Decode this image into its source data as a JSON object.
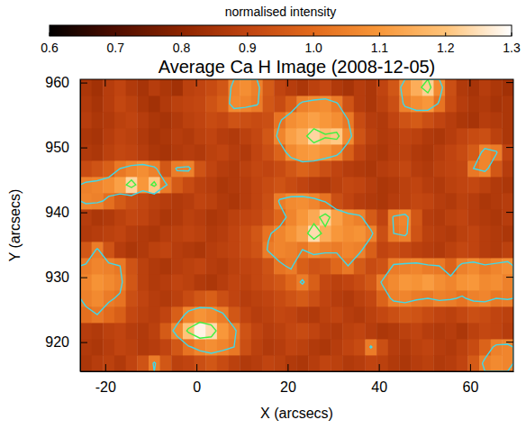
{
  "chart_data": {
    "type": "heatmap",
    "title": "Average Ca H Image (2008-12-05)",
    "x_label": "X (arcsecs)",
    "y_label": "Y (arcsecs)",
    "xlim": [
      -25.5,
      69.5
    ],
    "ylim": [
      915.5,
      960.5
    ],
    "xticks": [
      -20,
      0,
      20,
      40,
      60
    ],
    "yticks": [
      920,
      930,
      940,
      950,
      960
    ],
    "colorbar": {
      "label": "normalised intensity",
      "range": [
        0.6,
        1.3
      ],
      "ticks": [
        0.6,
        0.7,
        0.8,
        0.9,
        {
          "value": 1,
          "label": "1.0"
        },
        1.1,
        1.2,
        1.3
      ]
    },
    "contours": [
      {
        "level": 1.03,
        "color": "#40d8e8"
      },
      {
        "level": 1.18,
        "color": "#40f040"
      }
    ],
    "x": [
      -24.25,
      -21.75,
      -19.25,
      -16.75,
      -14.25,
      -11.75,
      -9.25,
      -6.75,
      -4.25,
      -1.75,
      0.75,
      3.25,
      5.75,
      8.25,
      10.75,
      13.25,
      15.75,
      18.25,
      20.75,
      23.25,
      25.75,
      28.25,
      30.75,
      33.25,
      35.75,
      38.25,
      40.75,
      43.25,
      45.75,
      48.25,
      50.75,
      53.25,
      55.75,
      58.25,
      60.75,
      63.25,
      65.75,
      68.25
    ],
    "y": [
      916.75,
      919.25,
      921.75,
      924.25,
      926.75,
      929.25,
      931.75,
      934.25,
      936.75,
      939.25,
      941.75,
      944.25,
      946.75,
      949.25,
      951.75,
      954.25,
      956.75,
      959.25
    ],
    "z": [
      [
        0.86,
        0.88,
        0.89,
        0.87,
        0.9,
        0.94,
        1.04,
        0.95,
        0.89,
        0.9,
        0.93,
        0.95,
        0.92,
        0.89,
        0.87,
        0.88,
        0.9,
        0.89,
        0.87,
        0.86,
        0.88,
        0.9,
        0.89,
        0.87,
        0.88,
        0.9,
        0.89,
        0.87,
        0.86,
        0.88,
        0.89,
        0.87,
        0.88,
        0.9,
        0.96,
        1.05,
        1.07,
        1.06
      ],
      [
        0.87,
        0.86,
        0.88,
        0.9,
        0.89,
        0.87,
        0.88,
        0.9,
        0.95,
        1.02,
        1.06,
        1.08,
        1.06,
        1.03,
        0.93,
        0.89,
        0.87,
        0.88,
        0.9,
        0.89,
        0.87,
        0.86,
        0.88,
        0.9,
        0.92,
        1.04,
        0.93,
        0.88,
        0.87,
        0.89,
        0.9,
        0.88,
        0.87,
        0.89,
        0.92,
        0.98,
        1.05,
        1.06
      ],
      [
        0.88,
        0.87,
        0.89,
        0.9,
        0.88,
        0.87,
        0.89,
        0.96,
        1.07,
        1.2,
        1.28,
        1.24,
        1.1,
        1.05,
        0.94,
        0.9,
        0.88,
        0.89,
        0.91,
        0.92,
        0.9,
        0.88,
        0.87,
        0.89,
        0.9,
        0.88,
        0.86,
        0.87,
        0.89,
        0.9,
        0.88,
        0.87,
        0.88,
        0.86,
        0.89,
        0.91,
        0.9,
        0.88
      ],
      [
        1.01,
        1.03,
        1.0,
        0.97,
        0.91,
        0.89,
        0.88,
        0.9,
        0.97,
        1.06,
        1.09,
        1.07,
        1.04,
        0.95,
        0.9,
        0.88,
        0.89,
        0.91,
        0.9,
        0.88,
        0.87,
        0.89,
        0.9,
        0.88,
        0.87,
        0.89,
        0.91,
        0.93,
        0.95,
        0.94,
        0.92,
        0.9,
        0.89,
        0.91,
        0.93,
        0.92,
        0.9,
        0.89
      ],
      [
        1.05,
        1.07,
        1.04,
        1.02,
        0.93,
        0.9,
        0.88,
        0.87,
        0.89,
        0.92,
        0.95,
        0.97,
        0.93,
        0.9,
        0.88,
        0.89,
        0.9,
        0.92,
        0.94,
        0.96,
        0.93,
        0.9,
        0.88,
        0.87,
        0.89,
        0.91,
        0.98,
        1.05,
        1.06,
        1.04,
        1.03,
        1.05,
        1.04,
        1.02,
        1.05,
        1.06,
        1.03,
        1.04
      ],
      [
        1.06,
        1.09,
        1.07,
        1.05,
        0.95,
        0.89,
        0.87,
        0.88,
        0.9,
        0.89,
        0.87,
        0.86,
        0.88,
        0.9,
        0.89,
        0.91,
        0.93,
        0.95,
        0.99,
        1.04,
        0.97,
        0.91,
        0.89,
        0.9,
        0.92,
        0.95,
        1.04,
        1.07,
        1.1,
        1.09,
        1.11,
        1.08,
        1.06,
        1.09,
        1.1,
        1.07,
        1.08,
        1.05
      ],
      [
        1.04,
        1.06,
        1.05,
        1.03,
        0.94,
        0.89,
        0.87,
        0.86,
        0.88,
        0.89,
        0.9,
        0.88,
        0.87,
        0.89,
        0.9,
        0.91,
        0.94,
        1.02,
        1.04,
        0.97,
        0.94,
        0.95,
        0.99,
        1.03,
        0.96,
        0.92,
        0.94,
        1.04,
        1.05,
        1.06,
        1.04,
        1.03,
        0.98,
        1.05,
        1.07,
        1.04,
        1.06,
        1.08
      ],
      [
        0.95,
        1.04,
        0.94,
        0.88,
        0.86,
        0.87,
        0.89,
        0.9,
        0.88,
        0.87,
        0.86,
        0.88,
        0.89,
        0.9,
        0.92,
        0.94,
        1.04,
        1.06,
        1.05,
        1.03,
        1.07,
        1.05,
        1.04,
        1.06,
        1.05,
        0.97,
        0.9,
        0.92,
        0.91,
        0.89,
        0.88,
        0.87,
        0.89,
        0.91,
        0.9,
        0.88,
        0.87,
        0.89
      ],
      [
        0.87,
        0.88,
        0.89,
        0.9,
        0.88,
        0.87,
        0.86,
        0.88,
        0.89,
        0.9,
        0.89,
        0.87,
        0.88,
        0.9,
        0.92,
        0.95,
        1.02,
        1.06,
        1.09,
        1.13,
        1.24,
        1.15,
        1.1,
        1.08,
        1.09,
        1.05,
        0.93,
        1.03,
        1.05,
        0.94,
        0.89,
        0.88,
        0.87,
        0.89,
        0.9,
        0.88,
        0.87,
        0.86
      ],
      [
        0.88,
        0.86,
        0.87,
        0.89,
        0.91,
        0.9,
        0.88,
        0.86,
        0.87,
        0.89,
        0.88,
        0.86,
        0.87,
        0.89,
        0.9,
        0.91,
        0.94,
        0.99,
        1.06,
        1.1,
        1.14,
        1.22,
        1.12,
        1.07,
        1.05,
        0.96,
        0.9,
        1.04,
        1.06,
        0.95,
        0.88,
        0.87,
        0.89,
        0.9,
        0.88,
        0.87,
        0.86,
        0.88
      ],
      [
        1.06,
        1.05,
        1.01,
        0.96,
        0.93,
        0.91,
        0.89,
        0.88,
        0.87,
        0.88,
        0.9,
        0.89,
        0.87,
        0.86,
        0.88,
        0.9,
        0.93,
        1.04,
        1.07,
        1.08,
        1.06,
        1.02,
        0.93,
        0.9,
        0.88,
        0.87,
        0.86,
        0.88,
        0.89,
        0.91,
        0.9,
        0.88,
        0.87,
        0.89,
        0.88,
        0.86,
        0.87,
        0.88
      ],
      [
        1.05,
        1.06,
        1.08,
        1.12,
        1.23,
        1.1,
        1.21,
        1.04,
        0.96,
        0.92,
        0.89,
        0.88,
        0.86,
        0.87,
        0.88,
        0.9,
        0.92,
        0.94,
        0.92,
        0.9,
        0.88,
        0.87,
        0.89,
        0.91,
        0.9,
        0.88,
        0.86,
        0.87,
        0.89,
        0.9,
        0.88,
        0.87,
        0.89,
        0.9,
        0.91,
        0.89,
        0.87,
        0.86
      ],
      [
        0.92,
        0.94,
        0.97,
        1.03,
        1.06,
        1.08,
        1.05,
        0.95,
        1.04,
        1.05,
        0.94,
        0.9,
        0.88,
        0.87,
        0.89,
        0.91,
        0.9,
        0.92,
        0.95,
        0.98,
        0.96,
        0.93,
        0.9,
        0.88,
        0.87,
        0.86,
        0.88,
        0.89,
        0.91,
        0.88,
        0.87,
        0.89,
        0.9,
        0.91,
        1.03,
        1.06,
        0.95,
        0.88
      ],
      [
        0.87,
        0.86,
        0.89,
        0.91,
        0.9,
        0.88,
        0.86,
        0.85,
        0.87,
        0.88,
        0.87,
        0.89,
        0.9,
        0.88,
        0.87,
        0.9,
        0.93,
        0.98,
        1.07,
        1.1,
        1.11,
        1.09,
        1.06,
        0.97,
        0.9,
        0.87,
        0.86,
        0.88,
        0.89,
        0.87,
        0.86,
        0.88,
        0.9,
        0.92,
        0.96,
        1.06,
        1.04,
        0.9
      ],
      [
        0.86,
        0.85,
        0.88,
        0.9,
        0.89,
        0.87,
        0.85,
        0.86,
        0.88,
        0.87,
        0.89,
        0.9,
        0.88,
        0.87,
        0.89,
        0.91,
        0.95,
        1.06,
        1.12,
        1.15,
        1.23,
        1.19,
        1.21,
        1.07,
        0.94,
        0.89,
        0.87,
        0.88,
        0.9,
        0.89,
        0.87,
        0.86,
        0.88,
        0.9,
        0.92,
        0.93,
        0.89,
        0.86
      ],
      [
        0.88,
        0.86,
        0.87,
        0.89,
        0.9,
        0.88,
        0.86,
        0.85,
        0.87,
        0.89,
        0.9,
        0.92,
        0.91,
        0.94,
        0.93,
        0.92,
        0.93,
        1.02,
        1.08,
        1.1,
        1.12,
        1.1,
        1.08,
        1.03,
        0.92,
        0.88,
        0.87,
        0.9,
        0.94,
        0.96,
        0.93,
        0.9,
        0.88,
        0.86,
        0.85,
        0.88,
        0.87,
        0.86
      ],
      [
        0.87,
        0.85,
        0.88,
        0.91,
        0.89,
        0.86,
        0.84,
        0.87,
        0.89,
        0.9,
        0.91,
        0.94,
        0.97,
        1.07,
        1.06,
        1.04,
        0.95,
        0.92,
        0.97,
        1.05,
        1.07,
        1.08,
        1.04,
        0.94,
        0.88,
        0.86,
        0.89,
        0.93,
        1.05,
        1.08,
        1.1,
        1.02,
        0.92,
        0.88,
        0.86,
        0.87,
        0.85,
        0.86
      ],
      [
        0.86,
        0.84,
        0.88,
        0.9,
        0.87,
        0.85,
        0.88,
        0.86,
        0.84,
        0.89,
        0.9,
        0.92,
        0.95,
        1.06,
        1.08,
        1.05,
        0.96,
        0.9,
        0.88,
        0.86,
        0.89,
        0.91,
        0.87,
        0.85,
        0.88,
        0.86,
        0.9,
        0.95,
        1.08,
        1.15,
        1.22,
        1.07,
        0.93,
        0.87,
        0.85,
        0.88,
        0.86,
        0.84
      ]
    ]
  }
}
